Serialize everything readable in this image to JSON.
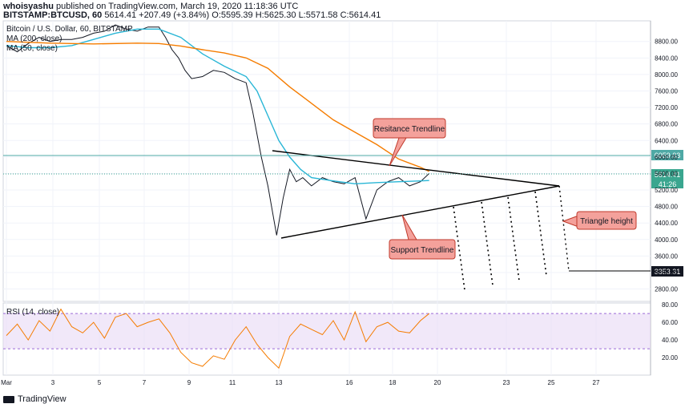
{
  "header": {
    "author": "whoisyashu",
    "published": "published on TradingView.com, March 19, 2020 11:18:36 UTC",
    "symbol": "BITSTAMP:BTCUSD, 60",
    "last": "5614.41",
    "change": "+207.49 (+3.84%)",
    "o_label": "O:",
    "o": "5595.39",
    "h_label": "H:",
    "h": "5625.30",
    "l_label": "L:",
    "l": "5571.58",
    "c_label": "C:",
    "c": "5614.41"
  },
  "legend": {
    "title": "Bitcoin / U.S. Dollar, 60, BITSTAMP",
    "ma200": "MA (200, close)",
    "ma50": "MA (50, close)",
    "rsi": "RSI (14, close)"
  },
  "annotations": {
    "resistance": "Resitance Trendline",
    "support": "Support Trendline",
    "triangle": "Triangle height"
  },
  "price_tags": {
    "resistance_level": "6059.03",
    "last_price": "5614.41",
    "countdown": "41:26",
    "target": "3353.31"
  },
  "footer": {
    "brand": "TradingView"
  },
  "colors": {
    "price": "#131722",
    "ma50": "#29b6d6",
    "ma200": "#f57c00",
    "rsi": "#f57c00",
    "rsi_band": "#e8d8f5",
    "callout_fill": "#f4a19b",
    "callout_stroke": "#c0392b",
    "tag_teal": "#4fa9a5",
    "tag_green": "#3aa68f"
  },
  "chart_data": [
    {
      "type": "line",
      "subtype": "candlestick",
      "x_ticks": [
        "Mar",
        "3",
        "5",
        "7",
        "9",
        "11",
        "13",
        "16",
        "18",
        "20",
        "23",
        "25",
        "27"
      ],
      "y_ticks": [
        8800,
        8400,
        8000,
        7600,
        7200,
        6800,
        6400,
        6000,
        5600,
        5200,
        4800,
        4400,
        4000,
        3600,
        3200,
        2800
      ],
      "ylim": [
        2500,
        9300
      ],
      "series": [
        {
          "name": "BTCUSD price",
          "x": [
            0,
            0.5,
            1,
            1.5,
            2,
            2.5,
            3,
            3.5,
            4,
            4.5,
            5,
            5.5,
            6,
            6.5,
            7,
            7.3,
            7.6,
            7.9,
            8.2,
            8.5,
            9,
            9.5,
            10,
            10.5,
            11,
            11.3,
            11.7,
            12,
            12.4,
            12.7,
            13,
            13.3,
            13.6,
            14,
            14.5,
            15,
            15.5,
            16,
            16.5,
            17,
            17.5,
            18,
            18.5,
            19,
            19.4
          ],
          "values": [
            8700,
            8550,
            8750,
            8900,
            8800,
            8850,
            8850,
            8900,
            9000,
            9050,
            9200,
            9100,
            9050,
            9150,
            9150,
            8900,
            8600,
            8400,
            8100,
            7900,
            7950,
            8100,
            8050,
            7900,
            7800,
            7100,
            6000,
            5300,
            4100,
            5000,
            5700,
            5400,
            5500,
            5300,
            5500,
            5400,
            5350,
            5500,
            4500,
            5200,
            5400,
            5500,
            5300,
            5400,
            5600
          ]
        },
        {
          "name": "MA (50, close)",
          "x": [
            0,
            1,
            2,
            3,
            4,
            5,
            6,
            7,
            8,
            9,
            10,
            11,
            11.5,
            12,
            12.5,
            13,
            13.5,
            14,
            15,
            16,
            17,
            18,
            19,
            19.4
          ],
          "values": [
            8700,
            8650,
            8650,
            8700,
            8850,
            9000,
            9100,
            9100,
            8900,
            8500,
            8200,
            7950,
            7600,
            7000,
            6400,
            6000,
            5700,
            5500,
            5420,
            5350,
            5380,
            5400,
            5420,
            5430
          ]
        },
        {
          "name": "MA (200, close)",
          "x": [
            0,
            2,
            4,
            6,
            7,
            8,
            9,
            10,
            11,
            12,
            13,
            14,
            15,
            16,
            17,
            18,
            19,
            19.4
          ],
          "values": [
            8800,
            8760,
            8740,
            8760,
            8750,
            8690,
            8600,
            8520,
            8400,
            8150,
            7700,
            7300,
            6900,
            6600,
            6300,
            5950,
            5750,
            5650
          ]
        }
      ]
    },
    {
      "type": "line",
      "name": "RSI (14, close)",
      "y_ticks": [
        80.0,
        60.0,
        40.0,
        20.0
      ],
      "ylim": [
        0,
        82
      ],
      "band": [
        30,
        70
      ],
      "x": [
        0,
        0.5,
        1,
        1.5,
        2,
        2.5,
        3,
        3.5,
        4,
        4.5,
        5,
        5.5,
        6,
        6.5,
        7,
        7.5,
        8,
        8.5,
        9,
        9.5,
        10,
        10.5,
        11,
        11.5,
        12,
        12.5,
        13,
        13.5,
        14,
        14.5,
        15,
        15.5,
        16,
        16.5,
        17,
        17.5,
        18,
        18.5,
        19,
        19.4
      ],
      "values": [
        45,
        58,
        40,
        62,
        50,
        75,
        55,
        48,
        60,
        42,
        66,
        70,
        55,
        60,
        64,
        48,
        26,
        14,
        10,
        22,
        18,
        40,
        55,
        35,
        20,
        8,
        44,
        58,
        52,
        46,
        62,
        40,
        72,
        38,
        55,
        60,
        50,
        48,
        62,
        70
      ]
    }
  ]
}
